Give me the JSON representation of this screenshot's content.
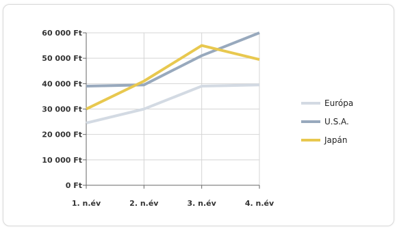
{
  "chart_data": {
    "type": "line",
    "title": "",
    "xlabel": "",
    "ylabel": "",
    "categories": [
      "1. n.év",
      "2. n.év",
      "3. n.év",
      "4. n.év"
    ],
    "ylim": [
      0,
      60000
    ],
    "y_ticks": [
      0,
      10000,
      20000,
      30000,
      40000,
      50000,
      60000
    ],
    "y_tick_labels": [
      "0 Ft",
      "10 000 Ft",
      "20 000 Ft",
      "30 000 Ft",
      "40 000 Ft",
      "50 000 Ft",
      "60 000 Ft"
    ],
    "grid": true,
    "legend_position": "right",
    "series": [
      {
        "name": "Európa",
        "color": "#d3dae3",
        "values": [
          24500,
          30000,
          39000,
          39500
        ]
      },
      {
        "name": "U.S.A.",
        "color": "#98a9bd",
        "values": [
          39000,
          39500,
          51000,
          60000
        ]
      },
      {
        "name": "Japán",
        "color": "#e8c84f",
        "values": [
          30000,
          41000,
          55000,
          49500
        ]
      }
    ]
  }
}
